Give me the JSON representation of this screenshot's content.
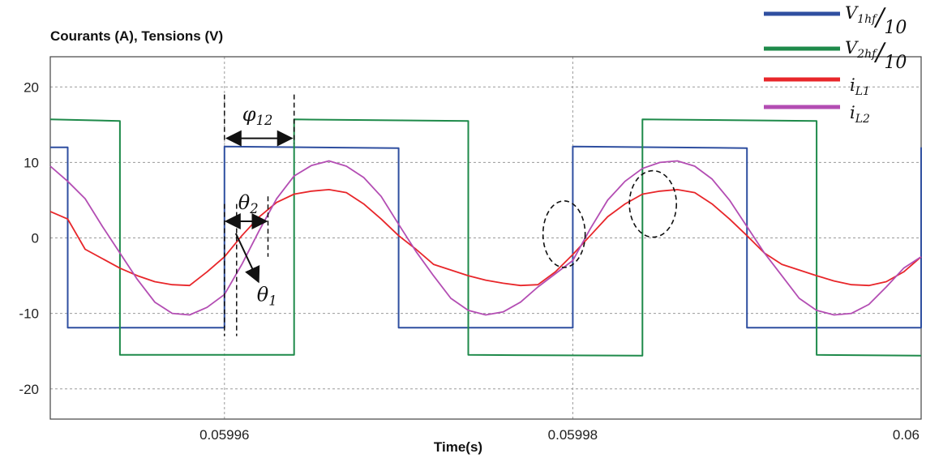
{
  "chart_data": {
    "type": "line",
    "title": "Courants (A), Tensions (V)",
    "xlabel": "Time(s)",
    "ylabel": "",
    "xlim": [
      0.05995,
      0.06
    ],
    "ylim": [
      -24,
      24
    ],
    "x_ticks": [
      {
        "value": 0.05996,
        "label": "0.05996"
      },
      {
        "value": 0.05998,
        "label": "0.05998"
      },
      {
        "value": 0.06,
        "label": "0.06"
      }
    ],
    "y_ticks": [
      {
        "value": 20,
        "label": "20"
      },
      {
        "value": 10,
        "label": "10"
      },
      {
        "value": 0,
        "label": "0"
      },
      {
        "value": -10,
        "label": "-10"
      },
      {
        "value": -20,
        "label": "-20"
      }
    ],
    "grid": true,
    "legend_position": "top-right",
    "series": [
      {
        "name": "V1hf/10",
        "legend_main": "V",
        "legend_sub": "1hf",
        "legend_den": "10",
        "color": "#2f4fa0",
        "kind": "step",
        "points": [
          [
            0.05995,
            12
          ],
          [
            0.059951,
            12
          ],
          [
            0.059951,
            -11.9
          ],
          [
            0.05996,
            -11.9
          ],
          [
            0.05996,
            12.1
          ],
          [
            0.05997,
            11.9
          ],
          [
            0.05997,
            -11.9
          ],
          [
            0.05998,
            -11.9
          ],
          [
            0.05998,
            12.1
          ],
          [
            0.05999,
            11.9
          ],
          [
            0.05999,
            -11.9
          ],
          [
            0.06,
            -11.9
          ],
          [
            0.06,
            12
          ]
        ]
      },
      {
        "name": "V2hf/10",
        "legend_main": "V",
        "legend_sub": "2hf",
        "legend_den": "10",
        "color": "#1e8a4a",
        "kind": "step",
        "points": [
          [
            0.05995,
            15.7
          ],
          [
            0.059954,
            15.5
          ],
          [
            0.059954,
            -15.5
          ],
          [
            0.059964,
            -15.5
          ],
          [
            0.059964,
            15.7
          ],
          [
            0.059974,
            15.5
          ],
          [
            0.059974,
            -15.5
          ],
          [
            0.059984,
            -15.6
          ],
          [
            0.059984,
            15.7
          ],
          [
            0.059994,
            15.5
          ],
          [
            0.059994,
            -15.5
          ],
          [
            0.06,
            -15.6
          ]
        ]
      },
      {
        "name": "iL1",
        "legend_main": "i",
        "legend_sub": "L1",
        "legend_den": "",
        "color": "#e8262a",
        "kind": "line",
        "points": [
          [
            0.05995,
            3.5
          ],
          [
            0.059951,
            2.5
          ],
          [
            0.059952,
            -1.5
          ],
          [
            0.059954,
            -4
          ],
          [
            0.059955,
            -5
          ],
          [
            0.059956,
            -5.8
          ],
          [
            0.059957,
            -6.2
          ],
          [
            0.059958,
            -6.3
          ],
          [
            0.059959,
            -4.5
          ],
          [
            0.05996,
            -2.5
          ],
          [
            0.059961,
            0.3
          ],
          [
            0.059962,
            2.8
          ],
          [
            0.059963,
            4.7
          ],
          [
            0.059964,
            5.8
          ],
          [
            0.059965,
            6.2
          ],
          [
            0.059966,
            6.4
          ],
          [
            0.059967,
            6
          ],
          [
            0.059968,
            4.5
          ],
          [
            0.059969,
            2.5
          ],
          [
            0.05997,
            0.3
          ],
          [
            0.059971,
            -1.5
          ],
          [
            0.059972,
            -3.5
          ],
          [
            0.059974,
            -5
          ],
          [
            0.059975,
            -5.6
          ],
          [
            0.059976,
            -6
          ],
          [
            0.059977,
            -6.3
          ],
          [
            0.059978,
            -6.2
          ],
          [
            0.059979,
            -4.5
          ],
          [
            0.05998,
            -2.2
          ],
          [
            0.059981,
            0.3
          ],
          [
            0.059982,
            2.8
          ],
          [
            0.059983,
            4.5
          ],
          [
            0.059984,
            5.8
          ],
          [
            0.059985,
            6.2
          ],
          [
            0.059986,
            6.4
          ],
          [
            0.059987,
            6
          ],
          [
            0.059988,
            4.5
          ],
          [
            0.059989,
            2.5
          ],
          [
            0.05999,
            0.3
          ],
          [
            0.059991,
            -2
          ],
          [
            0.059992,
            -3.5
          ],
          [
            0.059994,
            -5
          ],
          [
            0.059995,
            -5.7
          ],
          [
            0.059996,
            -6.2
          ],
          [
            0.059997,
            -6.3
          ],
          [
            0.059998,
            -5.8
          ],
          [
            0.059999,
            -4.5
          ],
          [
            0.06,
            -2.5
          ]
        ]
      },
      {
        "name": "iL2",
        "legend_main": "i",
        "legend_sub": "L2",
        "legend_den": "",
        "color": "#b34db3",
        "kind": "line",
        "points": [
          [
            0.05995,
            9.5
          ],
          [
            0.059951,
            7.5
          ],
          [
            0.059952,
            5.2
          ],
          [
            0.059953,
            1.5
          ],
          [
            0.059954,
            -2
          ],
          [
            0.059955,
            -5.5
          ],
          [
            0.059956,
            -8.5
          ],
          [
            0.059957,
            -10
          ],
          [
            0.059958,
            -10.2
          ],
          [
            0.059959,
            -9.2
          ],
          [
            0.05996,
            -7.5
          ],
          [
            0.059961,
            -3.5
          ],
          [
            0.059962,
            1
          ],
          [
            0.059963,
            5.2
          ],
          [
            0.059964,
            8.2
          ],
          [
            0.059965,
            9.6
          ],
          [
            0.059966,
            10.2
          ],
          [
            0.059967,
            9.5
          ],
          [
            0.059968,
            8
          ],
          [
            0.059969,
            5.5
          ],
          [
            0.05997,
            1.8
          ],
          [
            0.059971,
            -1.8
          ],
          [
            0.059972,
            -5
          ],
          [
            0.059973,
            -8
          ],
          [
            0.059974,
            -9.6
          ],
          [
            0.059975,
            -10.2
          ],
          [
            0.059976,
            -9.8
          ],
          [
            0.059977,
            -8.5
          ],
          [
            0.059978,
            -6.5
          ],
          [
            0.05998,
            -3
          ],
          [
            0.059981,
            1.2
          ],
          [
            0.059982,
            5
          ],
          [
            0.059983,
            7.5
          ],
          [
            0.059984,
            9.2
          ],
          [
            0.059985,
            10
          ],
          [
            0.059986,
            10.2
          ],
          [
            0.059987,
            9.5
          ],
          [
            0.059988,
            7.8
          ],
          [
            0.059989,
            5
          ],
          [
            0.05999,
            1.5
          ],
          [
            0.059991,
            -2
          ],
          [
            0.059992,
            -5
          ],
          [
            0.059993,
            -8
          ],
          [
            0.059994,
            -9.6
          ],
          [
            0.059995,
            -10.2
          ],
          [
            0.059996,
            -10
          ],
          [
            0.059997,
            -8.8
          ],
          [
            0.059998,
            -6.5
          ],
          [
            0.059999,
            -4
          ],
          [
            0.06,
            -2.5
          ]
        ]
      }
    ],
    "annotations": {
      "phi": {
        "main": "φ",
        "sub": "12"
      },
      "theta2": {
        "main": "θ",
        "sub": "2"
      },
      "theta1": {
        "main": "θ",
        "sub": "1"
      }
    }
  }
}
